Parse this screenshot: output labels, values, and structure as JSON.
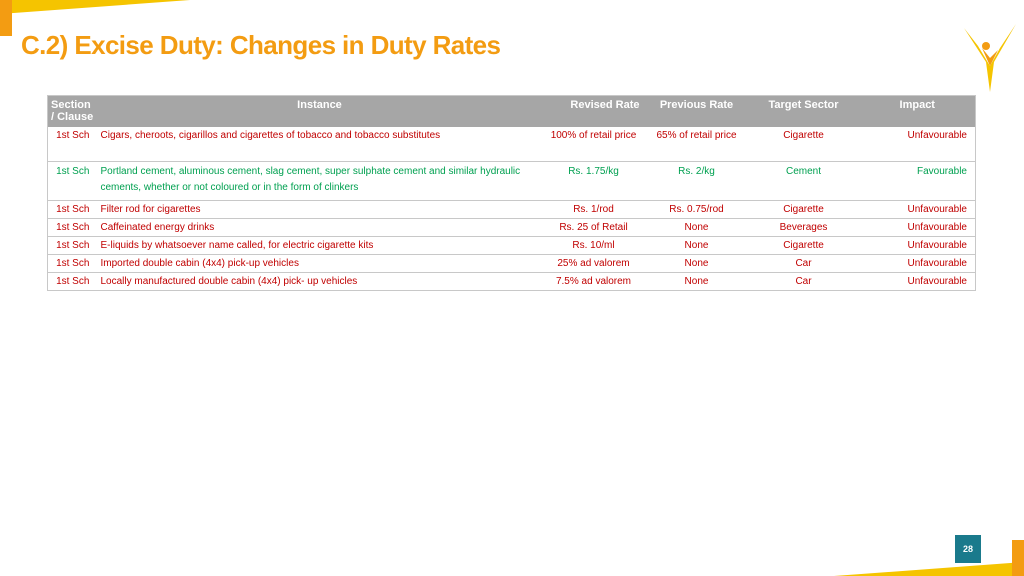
{
  "colors": {
    "accent_orange": "#f39c12",
    "accent_yellow": "#f5c400",
    "header_gray": "#a6a6a6",
    "unfavourable_red": "#c00000",
    "favourable_green": "#00a050",
    "page_badge": "#1a7a8c"
  },
  "title": "C.2) Excise Duty: Changes in Duty Rates",
  "table": {
    "headers": {
      "section": "Section / Clause",
      "instance": "Instance",
      "revised_rate": "Revised Rate",
      "previous_rate": "Previous Rate",
      "target_sector": "Target Sector",
      "impact": "Impact"
    },
    "rows": [
      {
        "section": "1st Sch",
        "instance": "Cigars, cheroots, cigarillos and cigarettes of tobacco and tobacco substitutes",
        "revised_rate": "100% of retail price",
        "previous_rate": "65% of retail price",
        "target_sector": "Cigarette",
        "impact": "Unfavourable",
        "tone": "unfavourable"
      },
      {
        "section": "1st Sch",
        "instance": "Portland cement, aluminous cement, slag cement, super sulphate cement and similar hydraulic cements, whether or not coloured or in the form of clinkers",
        "revised_rate": "Rs. 1.75/kg",
        "previous_rate": "Rs. 2/kg",
        "target_sector": "Cement",
        "impact": "Favourable",
        "tone": "favourable"
      },
      {
        "section": "1st Sch",
        "instance": "Filter rod for cigarettes",
        "revised_rate": "Rs. 1/rod",
        "previous_rate": "Rs. 0.75/rod",
        "target_sector": "Cigarette",
        "impact": "Unfavourable",
        "tone": "unfavourable"
      },
      {
        "section": "1st Sch",
        "instance": "Caffeinated energy drinks",
        "revised_rate": "Rs. 25 of Retail",
        "previous_rate": "None",
        "target_sector": "Beverages",
        "impact": "Unfavourable",
        "tone": "unfavourable"
      },
      {
        "section": "1st Sch",
        "instance": "E-liquids by whatsoever name called, for electric cigarette kits",
        "revised_rate": "Rs. 10/ml",
        "previous_rate": "None",
        "target_sector": "Cigarette",
        "impact": "Unfavourable",
        "tone": "unfavourable"
      },
      {
        "section": "1st Sch",
        "instance": "Imported double cabin (4x4) pick-up vehicles",
        "revised_rate": "25% ad valorem",
        "previous_rate": "None",
        "target_sector": "Car",
        "impact": "Unfavourable",
        "tone": "unfavourable"
      },
      {
        "section": "1st Sch",
        "instance": "Locally manufactured double cabin (4x4) pick- up vehicles",
        "revised_rate": "7.5% ad valorem",
        "previous_rate": "None",
        "target_sector": "Car",
        "impact": "Unfavourable",
        "tone": "unfavourable"
      }
    ]
  },
  "page_number": "28",
  "icons": {
    "logo": "checkmark-person-logo-icon"
  }
}
